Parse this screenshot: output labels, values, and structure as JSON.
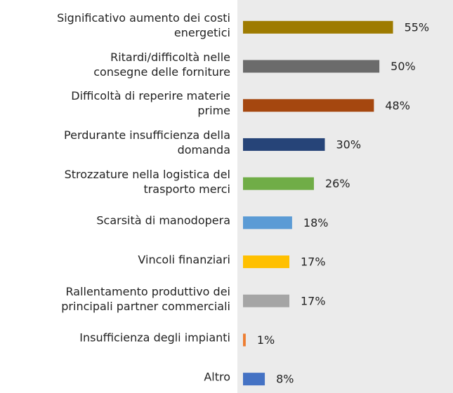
{
  "chart_data": {
    "type": "bar",
    "orientation": "horizontal",
    "categories": [
      "Significativo aumento dei costi\nenergetici",
      "Ritardi/difficoltà nelle\nconsegne delle forniture",
      "Difficoltà di reperire materie\nprime",
      "Perdurante insufficienza della\ndomanda",
      "Strozzature nella logistica del\ntrasporto merci",
      "Scarsità di manodopera",
      "Vincoli finanziari",
      "Rallentamento produttivo dei\nprincipali partner commerciali",
      "Insufficienza degli impianti",
      "Altro"
    ],
    "values": [
      55,
      50,
      48,
      30,
      26,
      18,
      17,
      17,
      1,
      8
    ],
    "value_labels": [
      "55%",
      "50%",
      "48%",
      "30%",
      "26%",
      "18%",
      "17%",
      "17%",
      "1%",
      "8%"
    ],
    "colors": [
      "#9e7b00",
      "#6b6b6b",
      "#a5470f",
      "#264478",
      "#70ad47",
      "#5b9bd5",
      "#ffc000",
      "#a5a5a5",
      "#ed7d31",
      "#4472c4"
    ],
    "xlim": [
      0,
      77
    ]
  }
}
